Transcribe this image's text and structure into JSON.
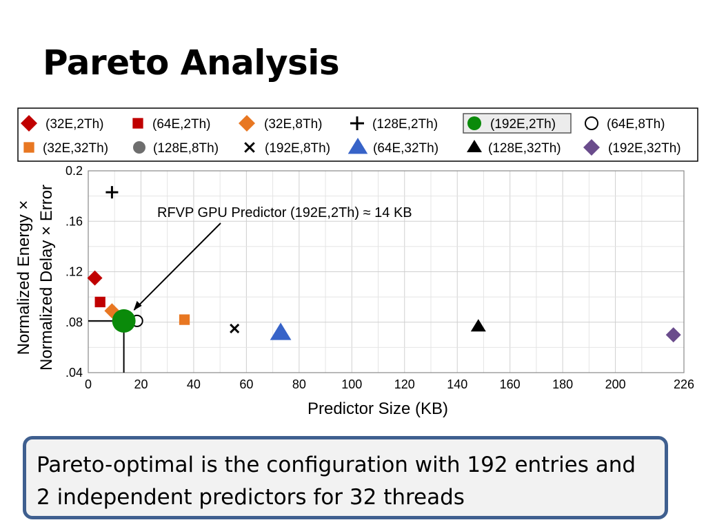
{
  "slide": {
    "title": "Pareto Analysis",
    "callout": "Pareto-optimal is the configuration with 192 entries and 2 independent predictors for 32 threads"
  },
  "chart_data": {
    "type": "scatter",
    "title": "",
    "xlabel": "Predictor Size (KB)",
    "ylabel_line1": "Normalized Energy ×",
    "ylabel_line2": "Normalized Delay × Error",
    "xlim": [
      0,
      226
    ],
    "ylim": [
      0.04,
      0.2
    ],
    "x_ticks": [
      {
        "value": 0,
        "label": "0"
      },
      {
        "value": 20,
        "label": "20"
      },
      {
        "value": 40,
        "label": "40"
      },
      {
        "value": 60,
        "label": "60"
      },
      {
        "value": 80,
        "label": "80"
      },
      {
        "value": 100,
        "label": "100"
      },
      {
        "value": 120,
        "label": "120"
      },
      {
        "value": 140,
        "label": "140"
      },
      {
        "value": 160,
        "label": "160"
      },
      {
        "value": 180,
        "label": "180"
      },
      {
        "value": 200,
        "label": "200"
      },
      {
        "value": 226,
        "label": "226"
      }
    ],
    "y_ticks": [
      {
        "value": 0.04,
        "label": ".04"
      },
      {
        "value": 0.08,
        "label": ".08"
      },
      {
        "value": 0.12,
        "label": ".12"
      },
      {
        "value": 0.16,
        "label": ".16"
      },
      {
        "value": 0.2,
        "label": "0.2"
      }
    ],
    "grid": true,
    "legend_placement": "top",
    "series": [
      {
        "name": "(32E,2Th)",
        "marker": "diamond",
        "color": "#c00000",
        "x": 2.5,
        "y": 0.115
      },
      {
        "name": "(64E,2Th)",
        "marker": "square",
        "color": "#c00000",
        "x": 4.5,
        "y": 0.096
      },
      {
        "name": "(32E,8Th)",
        "marker": "diamond",
        "color": "#e87722",
        "x": 9,
        "y": 0.089
      },
      {
        "name": "(128E,2Th)",
        "marker": "plus",
        "color": "#000000",
        "x": 9,
        "y": 0.183
      },
      {
        "name": "(192E,2Th)",
        "marker": "circle-filled",
        "color": "#0a8a0a",
        "x": 13.5,
        "y": 0.081,
        "highlighted": true
      },
      {
        "name": "(64E,8Th)",
        "marker": "circle-open",
        "color": "#000000",
        "x": 18.5,
        "y": 0.081
      },
      {
        "name": "(32E,32Th)",
        "marker": "square",
        "color": "#e87722",
        "x": 36.5,
        "y": 0.082
      },
      {
        "name": "(128E,8Th)",
        "marker": "circle-filled-small",
        "color": "#6e6e6e",
        "x": 13.5,
        "y": 0.081
      },
      {
        "name": "(192E,8Th)",
        "marker": "x",
        "color": "#000000",
        "x": 55.5,
        "y": 0.075
      },
      {
        "name": "(64E,32Th)",
        "marker": "triangle",
        "color": "#3763c8",
        "x": 73,
        "y": 0.072
      },
      {
        "name": "(128E,32Th)",
        "marker": "triangle-small",
        "color": "#000000",
        "x": 148,
        "y": 0.077
      },
      {
        "name": "(192E,32Th)",
        "marker": "diamond",
        "color": "#6a4c8c",
        "x": 222,
        "y": 0.07
      }
    ],
    "annotation": {
      "text": "RFVP GPU Predictor (192E,2Th) ≈ 14 KB",
      "target_x": 13.5,
      "target_y": 0.081
    },
    "pareto_guide_x": 13.5,
    "pareto_guide_y": 0.081
  }
}
